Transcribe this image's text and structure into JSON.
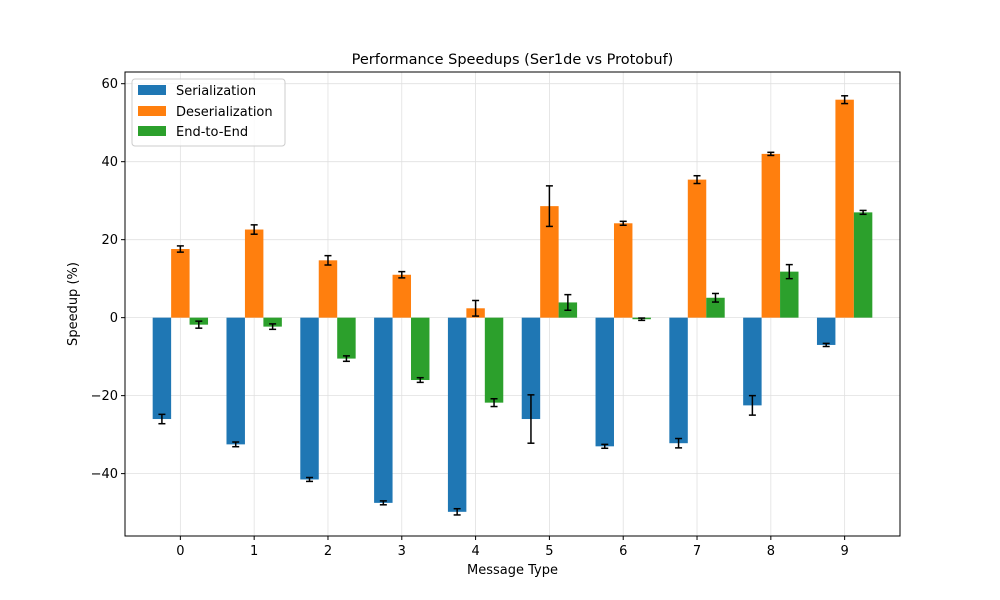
{
  "chart_data": {
    "type": "bar",
    "title": "Performance Speedups (Ser1de vs Protobuf)",
    "xlabel": "Message Type",
    "ylabel": "Speedup (%)",
    "categories": [
      "0",
      "1",
      "2",
      "3",
      "4",
      "5",
      "6",
      "7",
      "8",
      "9"
    ],
    "ylim": [
      -56,
      63
    ],
    "yticks": [
      -40,
      -20,
      0,
      20,
      40,
      60
    ],
    "grid": true,
    "legend_position": "upper-left",
    "series": [
      {
        "name": "Serialization",
        "color": "#1f77b4",
        "values": [
          -26,
          -32.5,
          -41.5,
          -47.5,
          -49.8,
          -26,
          -33,
          -32.2,
          -22.5,
          -7
        ],
        "errors": [
          1.2,
          0.6,
          0.5,
          0.5,
          0.8,
          6.2,
          0.5,
          1.2,
          2.5,
          0.4
        ]
      },
      {
        "name": "Deserialization",
        "color": "#ff7f0e",
        "values": [
          17.6,
          22.6,
          14.7,
          11,
          2.4,
          28.6,
          24.2,
          35.4,
          42,
          55.9
        ],
        "errors": [
          0.8,
          1.2,
          1.2,
          0.8,
          2,
          5.2,
          0.5,
          1,
          0.4,
          1
        ]
      },
      {
        "name": "End-to-End",
        "color": "#2ca02c",
        "values": [
          -1.8,
          -2.3,
          -10.5,
          -16,
          -21.8,
          3.9,
          -0.4,
          5.1,
          11.8,
          27
        ],
        "errors": [
          0.9,
          0.7,
          0.7,
          0.6,
          1,
          2,
          0.3,
          1.1,
          1.8,
          0.5
        ]
      }
    ]
  }
}
